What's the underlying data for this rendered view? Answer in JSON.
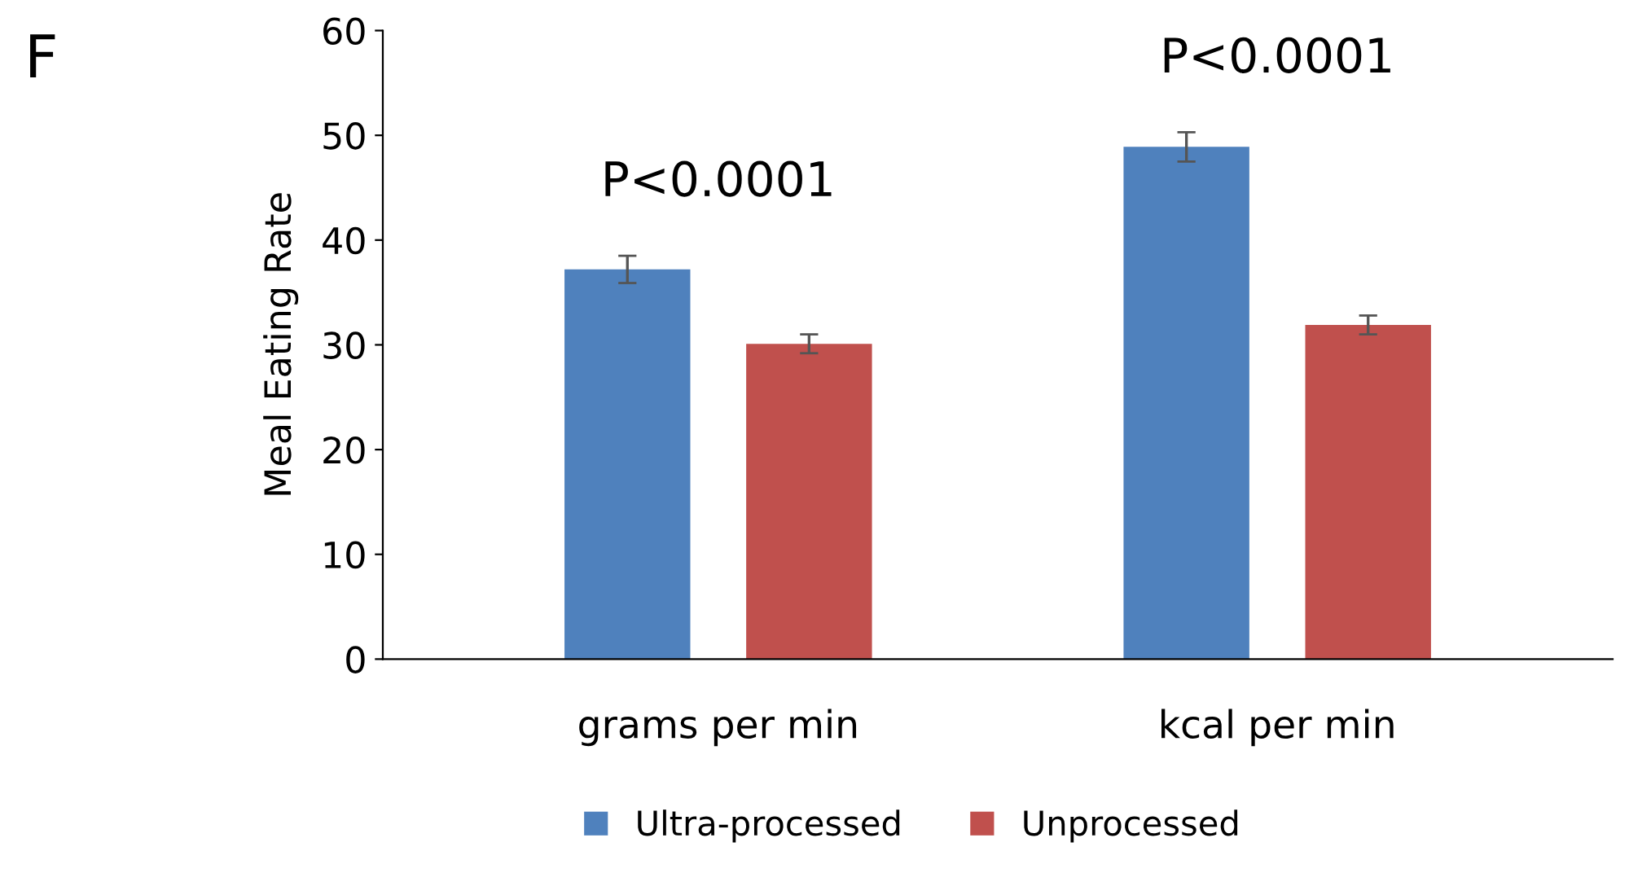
{
  "chart_data": {
    "type": "bar",
    "ylabel": "Meal Eating Rate",
    "categories": [
      "grams per min",
      "kcal per min"
    ],
    "series": [
      {
        "name": "Ultra-processed",
        "color": "#4f81bd",
        "values": [
          37.2,
          48.9
        ],
        "errors": [
          1.3,
          1.4
        ]
      },
      {
        "name": "Unprocessed",
        "color": "#c0504d",
        "values": [
          30.1,
          31.9
        ],
        "errors": [
          0.9,
          0.9
        ]
      }
    ],
    "ylim": [
      0,
      60
    ],
    "yticks": [
      0,
      10,
      20,
      30,
      40,
      50,
      60
    ],
    "grid": false,
    "legend": "bottom",
    "annotations": [
      "F",
      "P<0.0001",
      "P<0.0001"
    ]
  }
}
